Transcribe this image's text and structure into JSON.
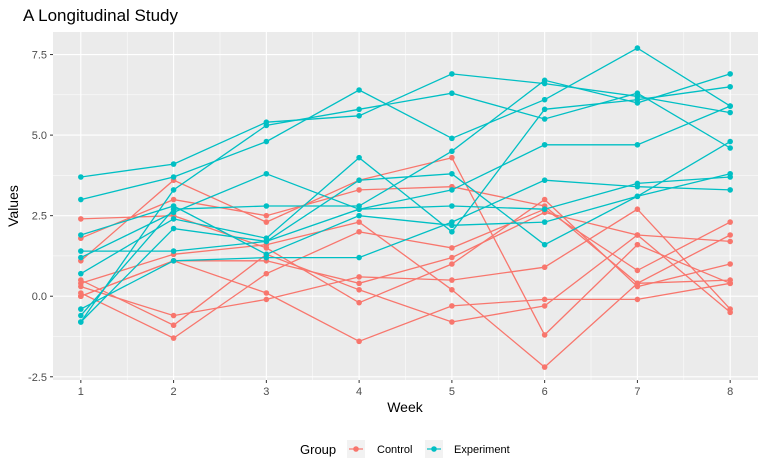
{
  "chart_data": {
    "type": "line",
    "title": "A Longitudinal Study",
    "xlabel": "Week",
    "ylabel": "Values",
    "x": [
      1,
      2,
      3,
      4,
      5,
      6,
      7,
      8
    ],
    "xlim": [
      0.7,
      8.3
    ],
    "ylim": [
      -2.6,
      8.2
    ],
    "x_ticks": [
      "1",
      "2",
      "3",
      "4",
      "5",
      "6",
      "7",
      "8"
    ],
    "y_ticks": [
      "-2.5",
      "0.0",
      "2.5",
      "5.0",
      "7.5"
    ],
    "y_tick_values": [
      -2.5,
      0,
      2.5,
      5,
      7.5
    ],
    "grid": true,
    "legend": {
      "title": "Group",
      "position": "bottom",
      "entries": [
        "Control",
        "Experiment"
      ]
    },
    "colors": {
      "Control": "#F8766D",
      "Experiment": "#00BFC4",
      "panel": "#EBEBEB",
      "grid": "#FFFFFF"
    },
    "subjects": [
      {
        "group": "Control",
        "values": [
          0.0,
          1.1,
          1.1,
          0.4,
          1.2,
          2.6,
          1.9,
          1.7
        ]
      },
      {
        "group": "Control",
        "values": [
          0.3,
          -0.6,
          -0.1,
          0.6,
          0.5,
          0.9,
          2.7,
          -0.4
        ]
      },
      {
        "group": "Control",
        "values": [
          1.8,
          3.0,
          2.5,
          3.3,
          3.4,
          2.8,
          0.4,
          0.5
        ]
      },
      {
        "group": "Control",
        "values": [
          2.4,
          2.5,
          1.5,
          -0.2,
          1.0,
          3.0,
          0.3,
          1.0
        ]
      },
      {
        "group": "Control",
        "values": [
          0.1,
          -1.3,
          0.7,
          2.0,
          1.5,
          2.7,
          0.8,
          2.3
        ]
      },
      {
        "group": "Control",
        "values": [
          1.1,
          3.6,
          2.3,
          3.6,
          4.3,
          -1.2,
          1.6,
          0.4
        ]
      },
      {
        "group": "Control",
        "values": [
          0.4,
          1.3,
          1.6,
          2.3,
          0.2,
          -2.2,
          0.4,
          1.9
        ]
      },
      {
        "group": "Control",
        "values": [
          0.0,
          1.1,
          0.1,
          -1.4,
          -0.3,
          -0.1,
          -0.1,
          0.4
        ]
      },
      {
        "group": "Control",
        "values": [
          0.5,
          -0.9,
          1.3,
          0.2,
          -0.8,
          -0.3,
          1.9,
          -0.5
        ]
      },
      {
        "group": "Experiment",
        "values": [
          3.7,
          4.1,
          5.4,
          5.6,
          6.9,
          6.6,
          6.2,
          5.7
        ]
      },
      {
        "group": "Experiment",
        "values": [
          3.0,
          3.7,
          4.8,
          6.4,
          4.9,
          6.1,
          7.7,
          5.9
        ]
      },
      {
        "group": "Experiment",
        "values": [
          -0.8,
          3.3,
          5.3,
          5.8,
          6.3,
          5.5,
          6.3,
          4.6
        ]
      },
      {
        "group": "Experiment",
        "values": [
          -0.6,
          2.7,
          2.8,
          2.8,
          4.5,
          6.7,
          6.0,
          6.9
        ]
      },
      {
        "group": "Experiment",
        "values": [
          1.2,
          2.6,
          3.8,
          2.7,
          3.3,
          4.7,
          4.7,
          5.9
        ]
      },
      {
        "group": "Experiment",
        "values": [
          0.7,
          2.4,
          1.8,
          4.3,
          2.0,
          5.8,
          6.1,
          6.5
        ]
      },
      {
        "group": "Experiment",
        "values": [
          -0.4,
          1.1,
          1.2,
          1.2,
          2.3,
          3.6,
          3.4,
          3.3
        ]
      },
      {
        "group": "Experiment",
        "values": [
          1.4,
          1.4,
          1.7,
          2.7,
          2.8,
          2.7,
          3.5,
          3.7
        ]
      },
      {
        "group": "Experiment",
        "values": [
          -0.8,
          2.1,
          1.7,
          3.6,
          3.8,
          1.6,
          3.1,
          4.8
        ]
      },
      {
        "group": "Experiment",
        "values": [
          1.9,
          2.8,
          1.3,
          2.5,
          2.2,
          2.3,
          3.1,
          3.8
        ]
      }
    ]
  }
}
